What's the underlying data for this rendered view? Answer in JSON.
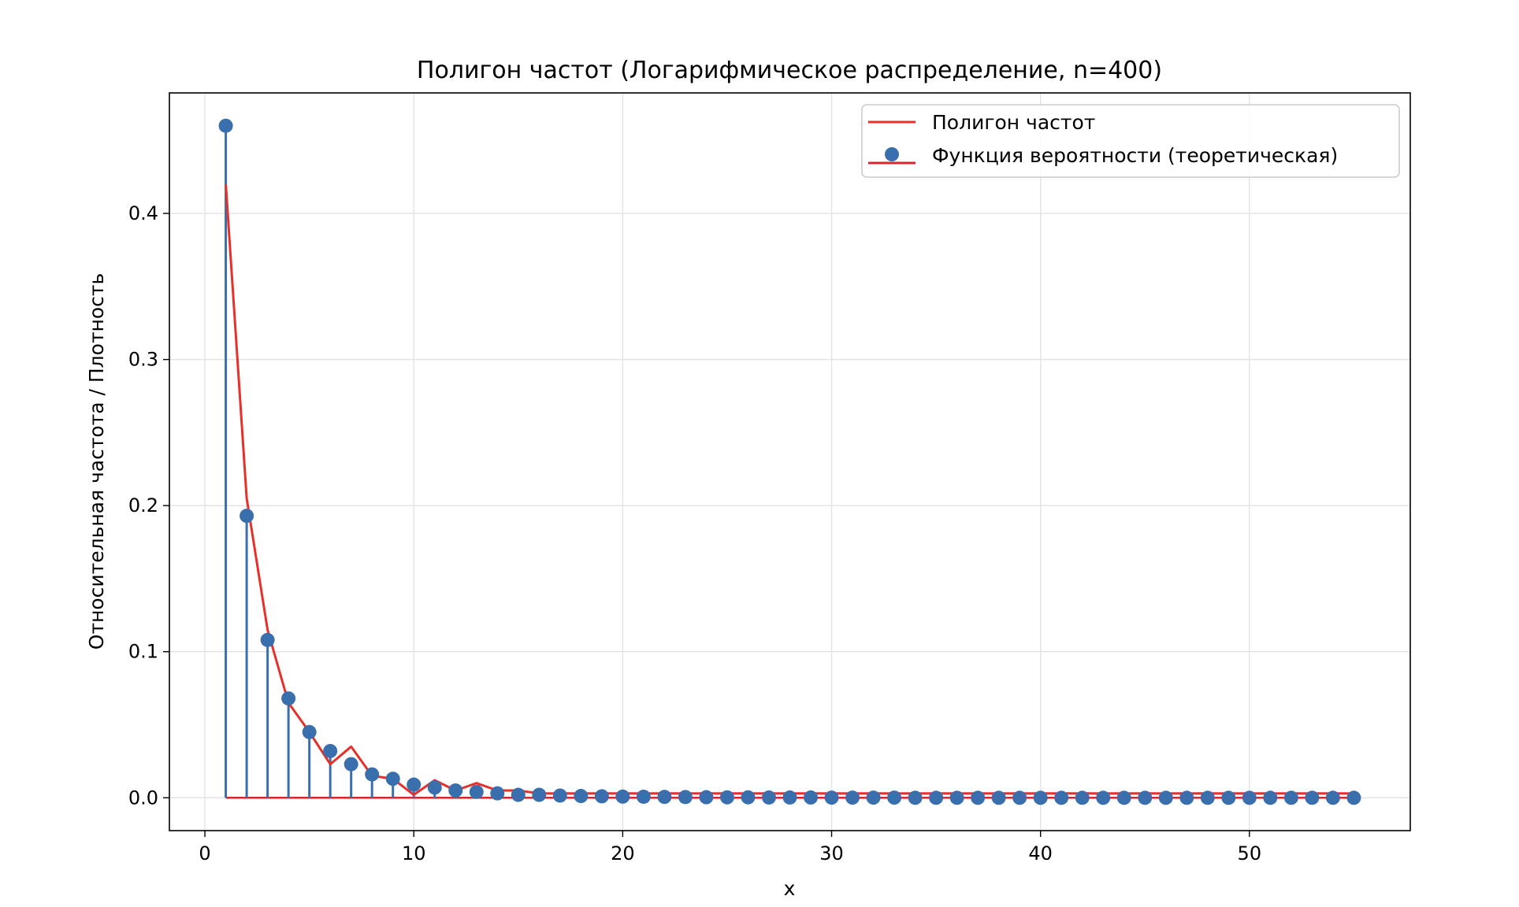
{
  "chart_data": {
    "type": "line",
    "title": "Полигон частот (Логарифмическое распределение, n=400)",
    "xlabel": "x",
    "ylabel": "Относительная частота / Плотность",
    "xlim": [
      -1.7,
      57.7
    ],
    "ylim": [
      -0.0225,
      0.4825
    ],
    "x_ticks": [
      0,
      10,
      20,
      30,
      40,
      50
    ],
    "y_ticks": [
      0.0,
      0.1,
      0.2,
      0.3,
      0.4
    ],
    "x_tick_labels": [
      "0",
      "10",
      "20",
      "30",
      "40",
      "50"
    ],
    "y_tick_labels": [
      "0.0",
      "0.1",
      "0.2",
      "0.3",
      "0.4"
    ],
    "grid": true,
    "legend_position": "top-right",
    "legend": {
      "polygon_label": "Полигон частот",
      "pmf_label": "Функция вероятности (теоретическая)"
    },
    "colors": {
      "polygon": "#e8302a",
      "pmf": "#3a6fad",
      "baseline": "#d62728",
      "grid": "#e3e3e3"
    },
    "x": [
      1,
      2,
      3,
      4,
      5,
      6,
      7,
      8,
      9,
      10,
      11,
      12,
      13,
      14,
      15,
      16,
      17,
      18,
      19,
      20,
      21,
      22,
      23,
      24,
      25,
      26,
      27,
      28,
      29,
      30,
      31,
      32,
      33,
      34,
      35,
      36,
      37,
      38,
      39,
      40,
      41,
      42,
      43,
      44,
      45,
      46,
      47,
      48,
      49,
      50,
      51,
      52,
      53,
      54,
      55
    ],
    "series": [
      {
        "name": "Полигон частот",
        "style": "line",
        "values": [
          0.42,
          0.205,
          0.115,
          0.065,
          0.045,
          0.023,
          0.035,
          0.015,
          0.013,
          0.002,
          0.012,
          0.005,
          0.01,
          0.005,
          0.005,
          0.003,
          0.003,
          0.003,
          0.003,
          0.003,
          0.003,
          0.003,
          0.003,
          0.003,
          0.003,
          0.003,
          0.003,
          0.003,
          0.003,
          0.003,
          0.003,
          0.003,
          0.003,
          0.003,
          0.003,
          0.003,
          0.003,
          0.003,
          0.003,
          0.003,
          0.003,
          0.003,
          0.003,
          0.003,
          0.003,
          0.003,
          0.003,
          0.003,
          0.003,
          0.003,
          0.003,
          0.003,
          0.003,
          0.003,
          0.003
        ]
      },
      {
        "name": "Функция вероятности (теоретическая)",
        "style": "stem",
        "values": [
          0.46,
          0.193,
          0.108,
          0.068,
          0.045,
          0.032,
          0.023,
          0.016,
          0.013,
          0.009,
          0.007,
          0.005,
          0.004,
          0.003,
          0.002,
          0.002,
          0.0015,
          0.0012,
          0.001,
          0.0008,
          0.0007,
          0.0006,
          0.0005,
          0.0004,
          0.0003,
          0.0003,
          0.0002,
          0.0002,
          0.0002,
          0.0001,
          0.0001,
          0.0001,
          0.0001,
          0,
          0,
          0,
          0,
          0,
          0,
          0,
          0,
          0,
          0,
          0,
          0,
          0,
          0,
          0,
          0,
          0,
          0,
          0,
          0,
          0,
          0
        ]
      }
    ]
  }
}
